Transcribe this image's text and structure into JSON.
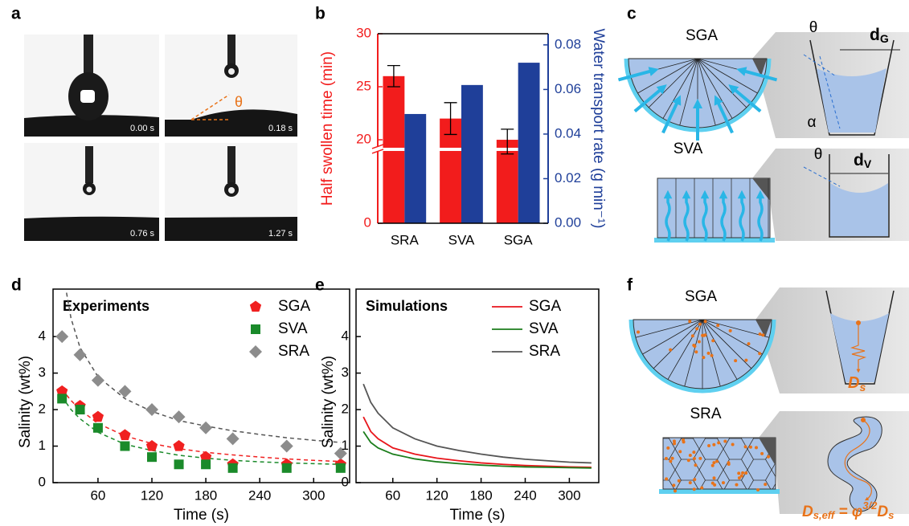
{
  "panel_labels": [
    "a",
    "b",
    "c",
    "d",
    "e",
    "f"
  ],
  "panel_a": {
    "timestamps": [
      "0.00 s",
      "0.18 s",
      "0.76 s",
      "1.27 s"
    ],
    "angle_label": "θ"
  },
  "panel_c": {
    "sga_label": "SGA",
    "sva_label": "SVA",
    "theta_g": "θ",
    "d_g": {
      "main": "d",
      "sub": "G"
    },
    "alpha": "α",
    "theta_v": "θ",
    "d_v": {
      "main": "d",
      "sub": "V"
    }
  },
  "panel_f": {
    "sga_label": "SGA",
    "sra_label": "SRA",
    "ds": {
      "main": "D",
      "sub": "s"
    },
    "dseff": [
      "D",
      "s,eff",
      " = φ",
      "3/2",
      "D",
      "s"
    ]
  },
  "chart_data": [
    {
      "type": "bar",
      "categories": [
        "SRA",
        "SVA",
        "SGA"
      ],
      "ylabel": "Half swollen time (min)",
      "y2label": "Water transport rate (g min⁻¹)",
      "ylim": [
        0,
        30
      ],
      "ybreak": 19.4,
      "yticks": [
        0,
        20,
        25,
        30
      ],
      "y2lim": [
        0,
        0.085
      ],
      "y2ticks": [
        {
          "value": 0,
          "label": "0.00"
        },
        {
          "value": 0.02,
          "label": "0.02"
        },
        {
          "value": 0.04,
          "label": "0.04"
        },
        {
          "value": 0.06,
          "label": "0.06"
        },
        {
          "value": 0.08,
          "label": "0.08"
        }
      ],
      "series": [
        {
          "color": "#f21c1c",
          "values": [
            26,
            22,
            20
          ],
          "errors": [
            1,
            1.5,
            1
          ]
        },
        {
          "color": "#1f3f99",
          "axis": "y2",
          "values": [
            0.049,
            0.062,
            0.072
          ]
        }
      ]
    },
    {
      "type": "scatter",
      "title": "Experiments",
      "xlabel": "Time (s)",
      "ylabel": "Salinity (wt%)",
      "xlim": [
        10,
        340
      ],
      "xticks": [
        60,
        120,
        180,
        240,
        300
      ],
      "ylim": [
        0,
        5.3
      ],
      "yticks": [
        0,
        1,
        2,
        3,
        4
      ],
      "legend": "upper right",
      "x": [
        20,
        40,
        60,
        90,
        120,
        150,
        180,
        210,
        270,
        330
      ],
      "series": [
        {
          "name": "SGA",
          "color": "#f02020",
          "marker": "pentagon",
          "values": [
            2.5,
            2.1,
            1.8,
            1.3,
            1.0,
            1.0,
            0.7,
            0.5,
            0.5,
            0.5
          ]
        },
        {
          "name": "SVA",
          "color": "#1a8a2a",
          "marker": "square",
          "values": [
            2.3,
            2.0,
            1.5,
            1.0,
            0.7,
            0.5,
            0.5,
            0.4,
            0.4,
            0.4
          ]
        },
        {
          "name": "SRA",
          "color": "#8c8c8c",
          "marker": "diamond",
          "values": [
            4.0,
            3.5,
            2.8,
            2.5,
            2.0,
            1.8,
            1.5,
            1.2,
            1.0,
            0.8
          ]
        }
      ],
      "fits": [
        {
          "color": "#f02020",
          "x": [
            20,
            30,
            40,
            60,
            90,
            120,
            150,
            180,
            210,
            240,
            270,
            300,
            330
          ],
          "values": [
            2.55,
            2.25,
            2.0,
            1.62,
            1.28,
            1.07,
            0.93,
            0.83,
            0.76,
            0.7,
            0.65,
            0.61,
            0.58
          ]
        },
        {
          "color": "#1a8a2a",
          "x": [
            20,
            30,
            40,
            60,
            90,
            120,
            150,
            180,
            210,
            240,
            270,
            300,
            330
          ],
          "values": [
            2.35,
            2.0,
            1.75,
            1.38,
            1.05,
            0.88,
            0.75,
            0.67,
            0.61,
            0.57,
            0.54,
            0.52,
            0.5
          ]
        },
        {
          "color": "#555555",
          "x": [
            25,
            30,
            40,
            60,
            90,
            120,
            150,
            180,
            210,
            240,
            270,
            300,
            330
          ],
          "values": [
            5.2,
            4.5,
            3.7,
            2.9,
            2.3,
            1.95,
            1.7,
            1.55,
            1.42,
            1.32,
            1.23,
            1.16,
            1.1
          ]
        }
      ]
    },
    {
      "type": "line",
      "title": "Simulations",
      "xlabel": "Time (s)",
      "ylabel": "Salinity (wt%)",
      "xlim": [
        10,
        340
      ],
      "xticks": [
        60,
        120,
        180,
        240,
        300
      ],
      "ylim": [
        0,
        5.3
      ],
      "yticks": [
        0,
        1,
        2,
        3,
        4
      ],
      "legend": "upper right",
      "x": [
        20,
        30,
        40,
        60,
        90,
        120,
        150,
        180,
        210,
        240,
        270,
        300,
        330
      ],
      "series": [
        {
          "name": "SGA",
          "color": "#e8151b",
          "values": [
            1.8,
            1.4,
            1.2,
            0.95,
            0.78,
            0.67,
            0.6,
            0.54,
            0.5,
            0.47,
            0.45,
            0.43,
            0.42
          ]
        },
        {
          "name": "SVA",
          "color": "#1b7d1b",
          "values": [
            1.4,
            1.1,
            0.95,
            0.78,
            0.65,
            0.57,
            0.52,
            0.48,
            0.45,
            0.43,
            0.42,
            0.41,
            0.4
          ]
        },
        {
          "name": "SRA",
          "color": "#555555",
          "values": [
            2.7,
            2.2,
            1.9,
            1.5,
            1.2,
            1.0,
            0.88,
            0.78,
            0.7,
            0.64,
            0.6,
            0.56,
            0.54
          ]
        }
      ]
    }
  ]
}
